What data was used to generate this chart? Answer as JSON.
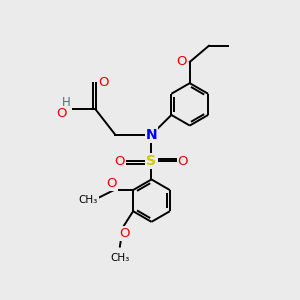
{
  "bg_color": "#ebebeb",
  "atom_colors": {
    "C": "#000000",
    "N": "#0000ee",
    "O": "#ee0000",
    "S": "#cccc00",
    "H": "#507070"
  },
  "bond_color": "#000000",
  "bond_width": 1.4,
  "font_size": 8.5
}
